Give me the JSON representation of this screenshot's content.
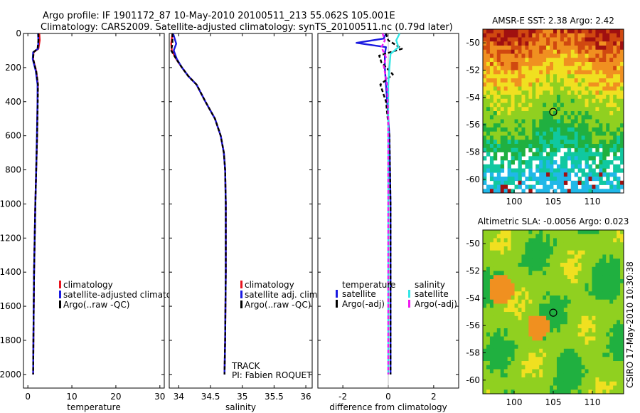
{
  "title": {
    "line1": "Argo profile: IF 1901172_87 10-May-2010 20100511_213 55.062S 105.001E",
    "line2": "Climatology: CARS2009. Satellite-adjusted climatology: synTS_20100511.nc (0.79d later)"
  },
  "side_label": "CSIRO 17-May-2010 10:30:38",
  "colors": {
    "red": "#e8141e",
    "blue": "#1a1ae0",
    "black": "#000000",
    "cyan": "#33e6e6",
    "magenta": "#f01af0"
  },
  "chart_data": [
    {
      "type": "line",
      "id": "temperature",
      "xlabel": "temperature",
      "xlim": [
        -1,
        31
      ],
      "ylim": [
        2080,
        0
      ],
      "xticks": [
        0,
        10,
        20,
        30
      ],
      "yticks": [
        0,
        200,
        400,
        600,
        800,
        1000,
        1200,
        1400,
        1600,
        1800,
        2000
      ],
      "ytick_labels": [
        "0",
        "200",
        "400",
        "600",
        "800",
        "1000",
        "1200",
        "1400",
        "1600",
        "1800",
        "2000"
      ],
      "legend": {
        "entries": [
          {
            "label": "climatology",
            "color": "red"
          },
          {
            "label": "satellite-adjusted climatolog",
            "color": "blue"
          },
          {
            "label": "Argo(..raw -QC)",
            "color": "black"
          }
        ]
      },
      "series": [
        {
          "name": "climatology",
          "color": "red",
          "dash": "",
          "x": [
            2.6,
            2.7,
            2.4,
            1.3,
            1.2,
            1.9,
            2.3,
            2.2,
            2.1,
            1.9,
            1.7,
            1.55,
            1.4,
            1.3,
            1.2
          ],
          "y": [
            0,
            40,
            90,
            110,
            150,
            220,
            300,
            400,
            600,
            800,
            1000,
            1200,
            1400,
            1700,
            2000
          ]
        },
        {
          "name": "satellite-adjusted climatology",
          "color": "blue",
          "dash": "",
          "x": [
            2.3,
            2.4,
            2.3,
            1.2,
            1.1,
            1.8,
            2.2,
            2.2,
            2.05,
            1.9,
            1.7,
            1.55,
            1.4,
            1.3,
            1.2
          ],
          "y": [
            0,
            40,
            90,
            110,
            150,
            220,
            300,
            400,
            600,
            800,
            1000,
            1200,
            1400,
            1700,
            2000
          ]
        },
        {
          "name": "Argo(..raw -QC)",
          "color": "black",
          "dash": "5,3",
          "x": [
            2.4,
            2.4,
            2.2,
            1.3,
            1.2,
            1.9,
            2.3,
            2.25,
            2.1,
            1.9,
            1.7,
            1.55,
            1.4,
            1.3,
            1.2
          ],
          "y": [
            0,
            40,
            90,
            110,
            150,
            220,
            300,
            400,
            600,
            800,
            1000,
            1200,
            1400,
            1700,
            2000
          ]
        }
      ]
    },
    {
      "type": "line",
      "id": "salinity",
      "xlabel": "salinity",
      "xlim": [
        33.85,
        36.1
      ],
      "ylim": [
        2080,
        0
      ],
      "xticks": [
        34,
        34.5,
        35,
        35.5,
        36
      ],
      "legend": {
        "entries": [
          {
            "label": "climatology",
            "color": "red"
          },
          {
            "label": "satellite adj. clim.",
            "color": "blue"
          },
          {
            "label": "Argo(..raw -QC)",
            "color": "black"
          }
        ]
      },
      "annotation": [
        "TRACK",
        "PI: Fabien ROQUET"
      ],
      "series": [
        {
          "name": "climatology",
          "color": "red",
          "dash": "",
          "x": [
            33.9,
            33.88,
            33.89,
            33.96,
            34.05,
            34.15,
            34.28,
            34.42,
            34.57,
            34.66,
            34.71,
            34.73,
            34.74,
            34.74,
            34.73,
            34.72
          ],
          "y": [
            0,
            60,
            100,
            150,
            200,
            250,
            300,
            400,
            500,
            600,
            700,
            800,
            1000,
            1400,
            1800,
            2000
          ]
        },
        {
          "name": "satellite adj. clim.",
          "color": "blue",
          "dash": "",
          "x": [
            33.91,
            33.96,
            33.92,
            33.97,
            34.05,
            34.15,
            34.28,
            34.42,
            34.57,
            34.66,
            34.71,
            34.73,
            34.74,
            34.74,
            34.73,
            34.72
          ],
          "y": [
            0,
            60,
            100,
            150,
            200,
            250,
            300,
            400,
            500,
            600,
            700,
            800,
            1000,
            1400,
            1800,
            2000
          ]
        },
        {
          "name": "Argo(..raw -QC)",
          "color": "black",
          "dash": "5,3",
          "x": [
            33.9,
            33.9,
            33.88,
            33.96,
            34.05,
            34.15,
            34.28,
            34.42,
            34.57,
            34.66,
            34.71,
            34.73,
            34.74,
            34.74,
            34.73,
            34.72
          ],
          "y": [
            0,
            60,
            100,
            150,
            200,
            250,
            300,
            400,
            500,
            600,
            700,
            800,
            1000,
            1400,
            1800,
            2000
          ]
        }
      ]
    },
    {
      "type": "line",
      "id": "difference",
      "xlabel": "difference from climatology",
      "xlim": [
        -3.1,
        3.1
      ],
      "ylim": [
        2080,
        0
      ],
      "xticks": [
        -2,
        0,
        2
      ],
      "legend": {
        "col1_title": "temperature",
        "col2_title": "salinity",
        "col1": [
          {
            "label": "satellite",
            "color": "blue"
          },
          {
            "label": "Argo(-adj)",
            "color": "black"
          }
        ],
        "col2": [
          {
            "label": "satellite",
            "color": "cyan"
          },
          {
            "label": "Argo(-adj)",
            "color": "magenta"
          }
        ]
      },
      "series": [
        {
          "name": "temperature satellite",
          "color": "blue",
          "dash": "",
          "x": [
            -0.1,
            -0.2,
            -1.4,
            -0.1,
            -0.15,
            -0.15,
            -0.1,
            -0.05,
            0.05,
            0.1,
            0.1,
            0.1
          ],
          "y": [
            0,
            30,
            55,
            80,
            120,
            200,
            300,
            400,
            600,
            1000,
            1500,
            2000
          ]
        },
        {
          "name": "temperature Argo(-adj)",
          "color": "black",
          "dash": "5,3",
          "x": [
            -0.1,
            0.0,
            0.6,
            -0.4,
            -0.3,
            0.2,
            -0.35,
            -0.1,
            0.05,
            0.1,
            0.1,
            0.1
          ],
          "y": [
            0,
            40,
            90,
            130,
            170,
            240,
            300,
            400,
            600,
            1000,
            1500,
            2000
          ]
        },
        {
          "name": "salinity satellite",
          "color": "cyan",
          "dash": "",
          "x": [
            0.5,
            0.35,
            0.45,
            0.1,
            0.05,
            0.0,
            0.0,
            0.0,
            0.0,
            0.0
          ],
          "y": [
            0,
            40,
            80,
            120,
            200,
            300,
            500,
            1000,
            1500,
            2000
          ]
        },
        {
          "name": "salinity Argo(-adj)",
          "color": "magenta",
          "dash": "5,3",
          "x": [
            -0.25,
            -0.15,
            -0.3,
            -0.1,
            -0.2,
            -0.05,
            0.0,
            0.0,
            0.0
          ],
          "y": [
            0,
            40,
            80,
            140,
            190,
            300,
            500,
            1000,
            2000
          ]
        }
      ]
    },
    {
      "type": "heatmap",
      "id": "sst-map",
      "title": "AMSR-E SST: 2.38 Argo: 2.42",
      "xlim": [
        96,
        114
      ],
      "ylim": [
        -61,
        -49
      ],
      "xticks": [
        100,
        105,
        110
      ],
      "yticks": [
        -50,
        -52,
        -54,
        -56,
        -58,
        -60
      ],
      "marker": {
        "lon": 105.0,
        "lat": -55.06
      }
    },
    {
      "type": "heatmap",
      "id": "sla-map",
      "title": "Altimetric SLA: -0.0056 Argo: 0.023",
      "xlim": [
        96,
        114
      ],
      "ylim": [
        -61,
        -49
      ],
      "xticks": [
        100,
        105,
        110
      ],
      "yticks": [
        -50,
        -52,
        -54,
        -56,
        -58,
        -60
      ],
      "marker": {
        "lon": 105.0,
        "lat": -55.06
      }
    }
  ]
}
